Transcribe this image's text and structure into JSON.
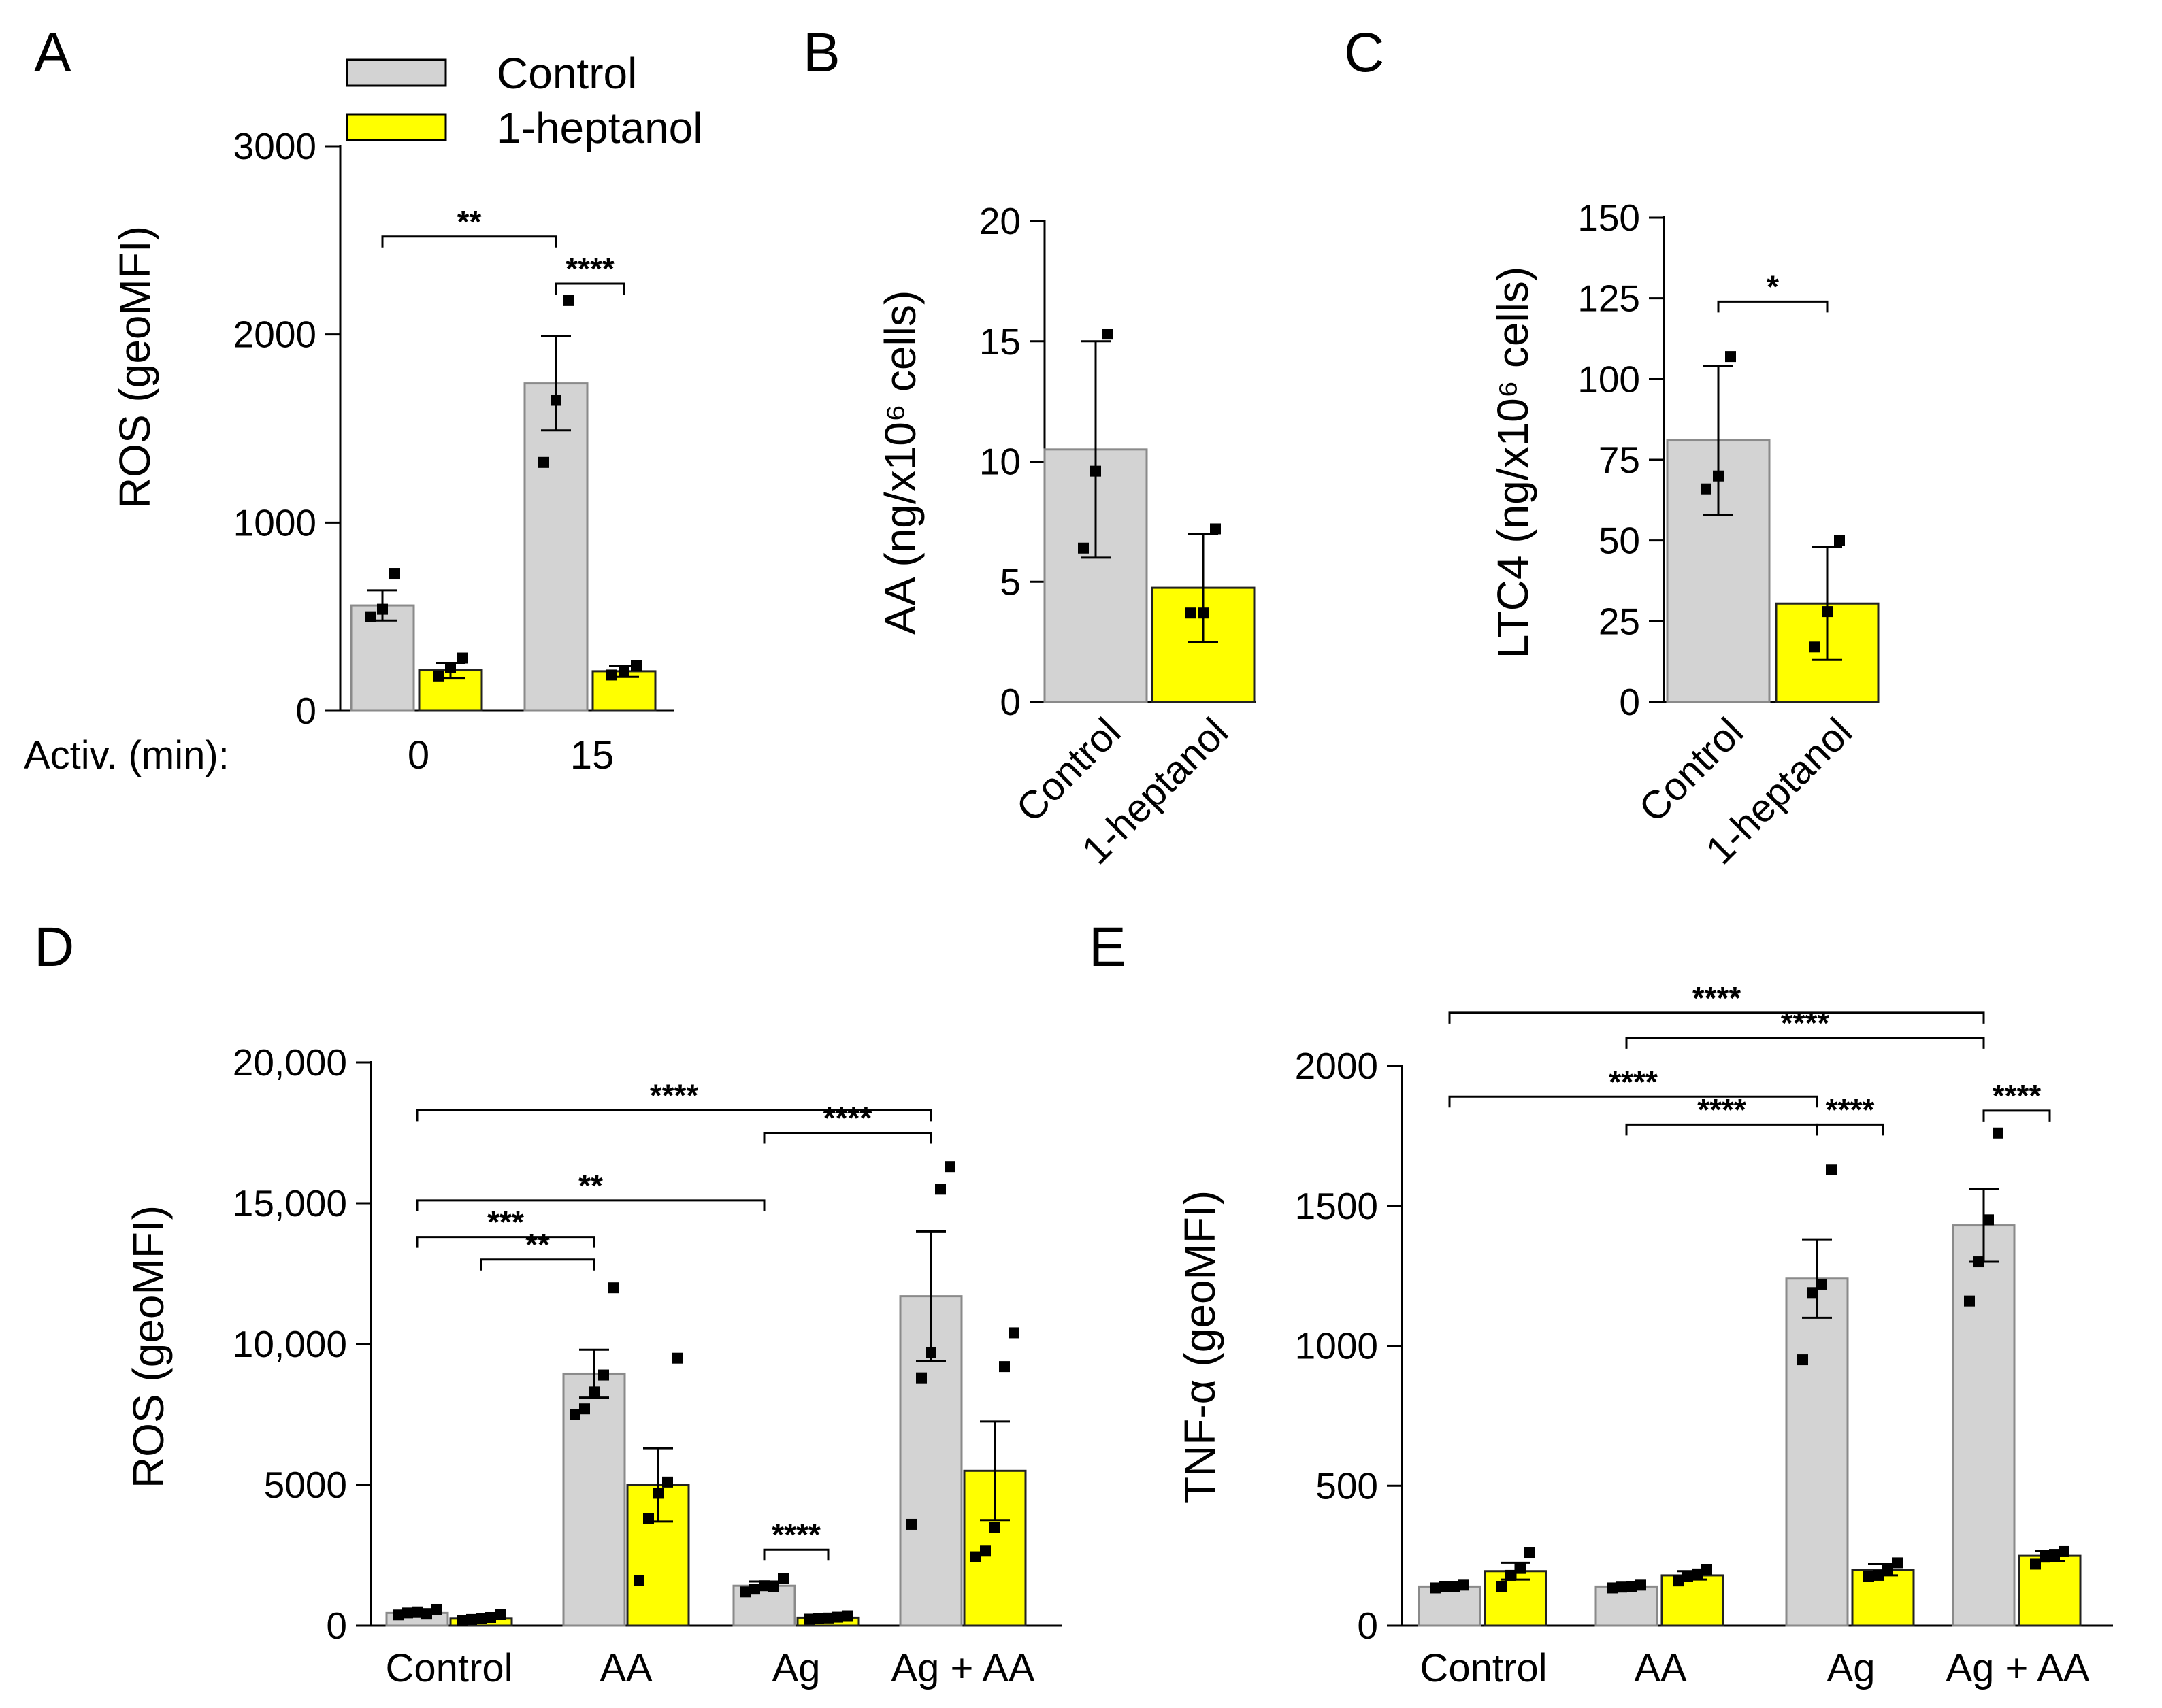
{
  "colors": {
    "control": "#d3d3d3",
    "heptanol": "#ffff00",
    "axis": "#000000"
  },
  "legend": {
    "items": [
      "Control",
      "1-heptanol"
    ]
  },
  "chart_data": [
    {
      "panel": "A",
      "type": "bar",
      "ylabel": "ROS (geoMFI)",
      "ylim": [
        0,
        3000
      ],
      "yticks": [
        0,
        1000,
        2000,
        3000
      ],
      "ytick_labels": [
        "0",
        "1000",
        "2000",
        "3000"
      ],
      "xprefix": "Activ. (min):",
      "categories": [
        "0",
        "15"
      ],
      "series": [
        {
          "name": "Control",
          "values": [
            560,
            1740
          ],
          "err": [
            80,
            250
          ],
          "points": [
            [
              500,
              540,
              730
            ],
            [
              1320,
              1650,
              2180
            ]
          ]
        },
        {
          "name": "1-heptanol",
          "values": [
            215,
            210
          ],
          "err": [
            40,
            30
          ],
          "points": [
            [
              185,
              230,
              280
            ],
            [
              190,
              210,
              240
            ]
          ]
        }
      ],
      "comparisons": [
        {
          "from": [
            0,
            0
          ],
          "to": [
            1,
            0
          ],
          "y": 2520,
          "label": "**"
        },
        {
          "from": [
            1,
            0
          ],
          "to": [
            1,
            1
          ],
          "y": 2270,
          "label": "****"
        }
      ]
    },
    {
      "panel": "B",
      "type": "bar",
      "ylabel": "AA (ng/x10⁶ cells)",
      "ylim": [
        0,
        20
      ],
      "yticks": [
        0,
        5,
        10,
        15,
        20
      ],
      "ytick_labels": [
        "0",
        "5",
        "10",
        "15",
        "20"
      ],
      "categories": [
        "Control",
        "1-heptanol"
      ],
      "values": [
        10.5,
        4.75
      ],
      "err_low": [
        6.0,
        2.5
      ],
      "err_high": [
        15.0,
        7.0
      ],
      "points": [
        [
          6.4,
          9.6,
          15.3
        ],
        [
          3.7,
          3.7,
          7.2
        ]
      ],
      "comparisons": []
    },
    {
      "panel": "C",
      "type": "bar",
      "ylabel": "LTC4 (ng/x10⁶ cells)",
      "ylim": [
        0,
        150
      ],
      "yticks": [
        0,
        25,
        50,
        75,
        100,
        125,
        150
      ],
      "ytick_labels": [
        "0",
        "25",
        "50",
        "75",
        "100",
        "125",
        "150"
      ],
      "categories": [
        "Control",
        "1-heptanol"
      ],
      "values": [
        81,
        30.5
      ],
      "err_low": [
        58,
        13
      ],
      "err_high": [
        104,
        48
      ],
      "points": [
        [
          66,
          70,
          107
        ],
        [
          17,
          28,
          50
        ]
      ],
      "comparisons": [
        {
          "from": 0,
          "to": 1,
          "y": 124,
          "label": "*"
        }
      ]
    },
    {
      "panel": "D",
      "type": "bar",
      "ylabel": "ROS (geoMFI)",
      "ylim": [
        0,
        20000
      ],
      "yticks": [
        0,
        5000,
        10000,
        15000,
        20000
      ],
      "ytick_labels": [
        "0",
        "5000",
        "10,000",
        "15,000",
        "20,000"
      ],
      "categories": [
        "Control",
        "AA",
        "Ag",
        "Ag + AA"
      ],
      "series": [
        {
          "name": "Control",
          "values": [
            450,
            8950,
            1420,
            11700
          ],
          "err": [
            80,
            850,
            150,
            2300
          ],
          "points": [
            [
              380,
              450,
              490,
              430,
              580
            ],
            [
              7500,
              7700,
              8300,
              8900,
              12000
            ],
            [
              1200,
              1300,
              1420,
              1380,
              1680
            ],
            [
              3600,
              8800,
              9700,
              15500,
              16300
            ]
          ]
        },
        {
          "name": "1-heptanol",
          "values": [
            270,
            5000,
            280,
            5500
          ],
          "err": [
            60,
            1300,
            40,
            1750
          ],
          "points": [
            [
              180,
              220,
              260,
              290,
              400
            ],
            [
              1600,
              3800,
              4700,
              5100,
              9500
            ],
            [
              230,
              250,
              270,
              300,
              350
            ],
            [
              2450,
              2650,
              3500,
              9200,
              10400
            ]
          ]
        }
      ],
      "comparisons": [
        {
          "from": [
            0,
            0
          ],
          "to": [
            3,
            0
          ],
          "y": 18300,
          "label": "****"
        },
        {
          "from": [
            2,
            0
          ],
          "to": [
            3,
            0
          ],
          "y": 17500,
          "label": "****"
        },
        {
          "from": [
            0,
            0
          ],
          "to": [
            2,
            0
          ],
          "y": 15100,
          "label": "**"
        },
        {
          "from": [
            0,
            0
          ],
          "to": [
            1,
            0
          ],
          "y": 13800,
          "label": "***"
        },
        {
          "from": [
            0,
            1
          ],
          "to": [
            1,
            0
          ],
          "y": 13000,
          "label": "**"
        },
        {
          "from": [
            2,
            0
          ],
          "to": [
            2,
            1
          ],
          "y": 2700,
          "label": "****"
        }
      ]
    },
    {
      "panel": "E",
      "type": "bar",
      "ylabel": "TNF-α (geoMFI)",
      "ylim": [
        0,
        2000
      ],
      "yticks": [
        0,
        500,
        1000,
        1500,
        2000
      ],
      "ytick_labels": [
        "0",
        "500",
        "1000",
        "1500",
        "2000"
      ],
      "categories": [
        "Control",
        "AA",
        "Ag",
        "Ag + AA"
      ],
      "series": [
        {
          "name": "Control",
          "values": [
            140,
            140,
            1240,
            1430
          ],
          "err": [
            10,
            10,
            140,
            130
          ],
          "points": [
            [
              135,
              140,
              140,
              145
            ],
            [
              135,
              138,
              140,
              145
            ],
            [
              950,
              1190,
              1220,
              1630
            ],
            [
              1160,
              1300,
              1450,
              1760
            ]
          ]
        },
        {
          "name": "1-heptanol",
          "values": [
            195,
            180,
            200,
            250
          ],
          "err": [
            30,
            15,
            20,
            18
          ],
          "points": [
            [
              140,
              180,
              205,
              260
            ],
            [
              160,
              175,
              185,
              200
            ],
            [
              175,
              180,
              200,
              225
            ],
            [
              220,
              245,
              255,
              265
            ]
          ]
        }
      ],
      "comparisons": [
        {
          "from": [
            0,
            0
          ],
          "to": [
            3,
            0
          ],
          "y": 2190,
          "label": "****"
        },
        {
          "from": [
            1,
            0
          ],
          "to": [
            3,
            0
          ],
          "y": 2100,
          "label": "****"
        },
        {
          "from": [
            0,
            0
          ],
          "to": [
            2,
            0
          ],
          "y": 1890,
          "label": "****"
        },
        {
          "from": [
            1,
            0
          ],
          "to": [
            2,
            0
          ],
          "y": 1790,
          "label": "****"
        },
        {
          "from": [
            2,
            0
          ],
          "to": [
            2,
            1
          ],
          "y": 1790,
          "label": "****"
        },
        {
          "from": [
            3,
            0
          ],
          "to": [
            3,
            1
          ],
          "y": 1840,
          "label": "****"
        }
      ]
    }
  ]
}
